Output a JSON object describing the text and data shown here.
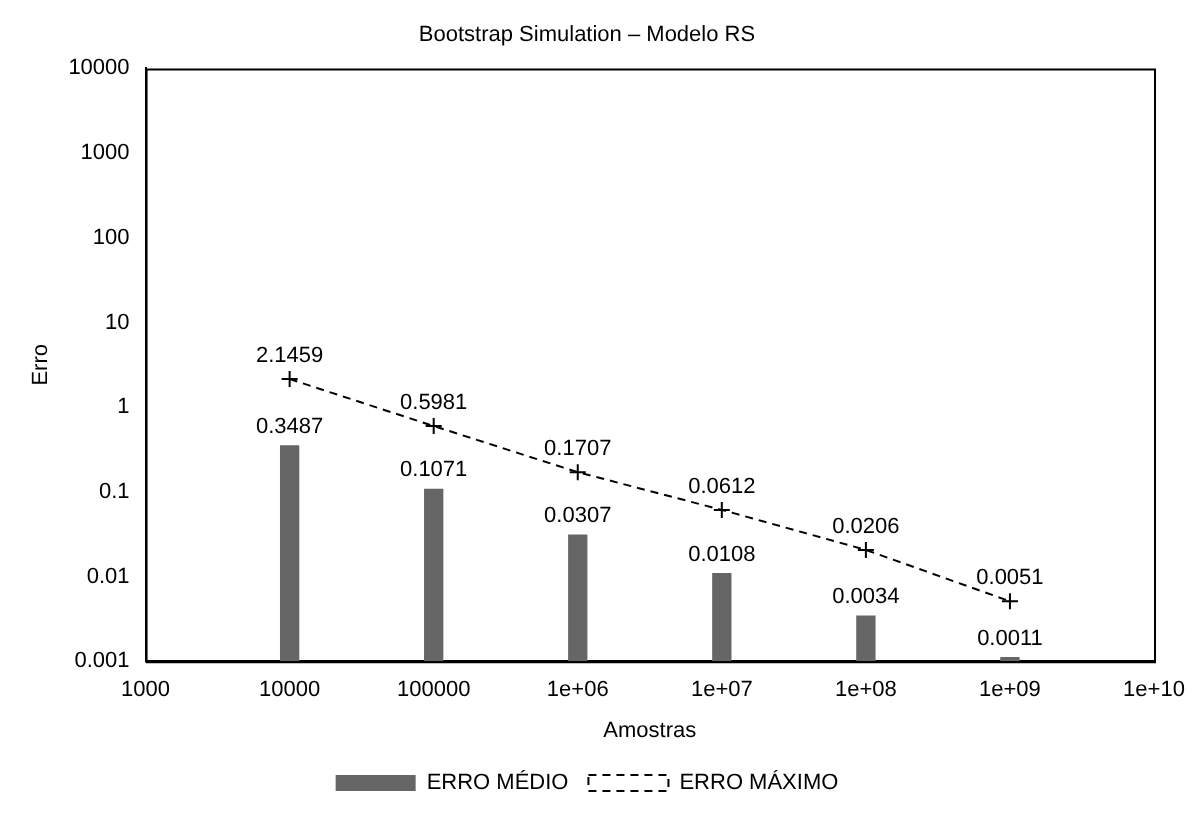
{
  "chart_data": {
    "type": "bar",
    "title": "Bootstrap Simulation – Modelo RS",
    "xlabel": "Amostras",
    "ylabel": "Erro",
    "x": [
      10000,
      100000,
      1000000,
      10000000,
      100000000,
      1000000000
    ],
    "series": [
      {
        "name": "ERRO MÉDIO",
        "color": "#666666",
        "values": [
          0.3487,
          0.1071,
          0.0307,
          0.0108,
          0.0034,
          0.0011
        ]
      },
      {
        "name": "ERRO MÁXIMO",
        "type": "line",
        "color": "#000000",
        "marker": "cross",
        "line_style": "dashed",
        "values": [
          2.1459,
          0.5981,
          0.1707,
          0.0612,
          0.0206,
          0.0051
        ]
      }
    ],
    "log": "xy",
    "xlim": [
      1000,
      10000000000
    ],
    "xticks": [
      1000,
      10000,
      100000,
      {
        "value": 1000000,
        "label": "1e+06"
      },
      {
        "value": 10000000,
        "label": "1e+07"
      },
      {
        "value": 100000000,
        "label": "1e+08"
      },
      {
        "value": 1000000000,
        "label": "1e+09"
      },
      {
        "value": 10000000000,
        "label": "1e+10"
      }
    ],
    "ylim": [
      0.001,
      10000
    ],
    "yticks": [
      0.001,
      0.01,
      0.1,
      1,
      10,
      100,
      1000,
      10000
    ],
    "grid": false,
    "legend": "bottom",
    "data_labels": true
  }
}
